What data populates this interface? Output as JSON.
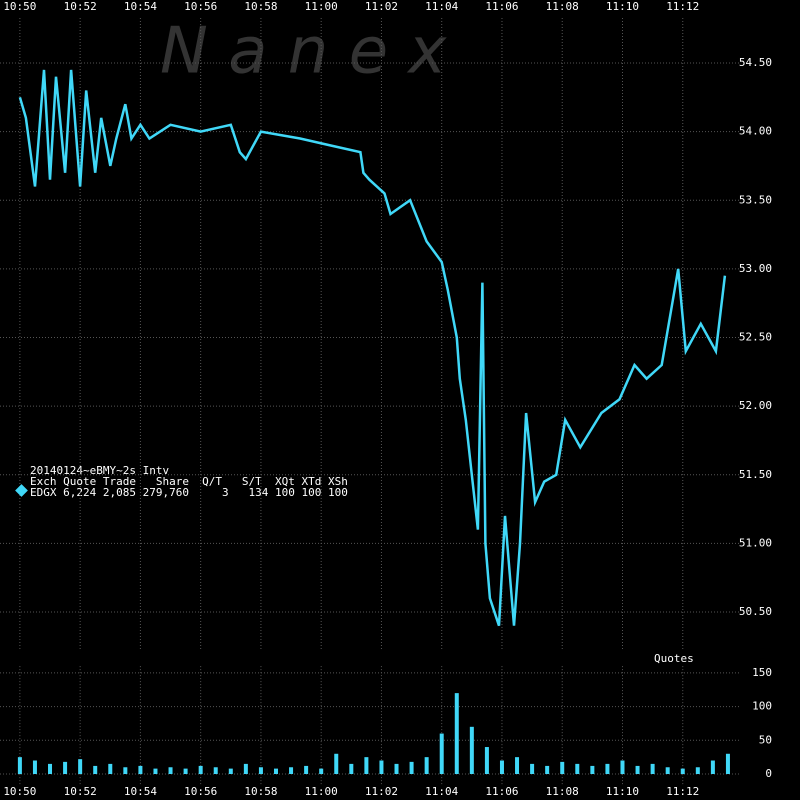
{
  "chart_data": [
    {
      "type": "line",
      "watermark": "N a n e x",
      "legend": {
        "title": "20140124~eBMY~2s Intv",
        "header": "Exch Quote Trade   Share  Q/T   S/T  XQt XTd XSh",
        "row": "EDGX 6,224 2,085 279,760     3   134 100 100 100"
      },
      "x": [
        0,
        0.2,
        0.5,
        0.8,
        1.0,
        1.2,
        1.5,
        1.7,
        2.0,
        2.2,
        2.5,
        2.7,
        3.0,
        3.2,
        3.5,
        3.7,
        4.0,
        4.3,
        5.0,
        6.0,
        7.0,
        7.3,
        7.5,
        8.0,
        9.3,
        10.3,
        11.3,
        11.4,
        11.6,
        12.1,
        12.3,
        12.95,
        13.5,
        14.0,
        14.2,
        14.5,
        14.6,
        14.8,
        15.0,
        15.2,
        15.35,
        15.45,
        15.6,
        15.9,
        16.1,
        16.4,
        16.6,
        16.8,
        17.1,
        17.4,
        17.8,
        18.1,
        18.6,
        19.3,
        19.9,
        20.4,
        20.8,
        21.3,
        21.85,
        22.1,
        22.6,
        23.1,
        23.4
      ],
      "series": [
        {
          "name": "EDGX",
          "color": "#40d8f8",
          "values": [
            54.25,
            54.1,
            53.6,
            54.45,
            53.65,
            54.4,
            53.7,
            54.45,
            53.6,
            54.3,
            53.7,
            54.1,
            53.75,
            53.95,
            54.2,
            53.95,
            54.05,
            53.95,
            54.05,
            54.0,
            54.05,
            53.85,
            53.8,
            54.0,
            53.95,
            53.9,
            53.85,
            53.7,
            53.65,
            53.55,
            53.4,
            53.5,
            53.2,
            53.05,
            52.85,
            52.5,
            52.2,
            51.9,
            51.5,
            51.1,
            52.9,
            51.0,
            50.6,
            50.4,
            51.2,
            50.4,
            51.0,
            51.95,
            51.3,
            51.45,
            51.5,
            51.9,
            51.7,
            51.95,
            52.05,
            52.3,
            52.2,
            52.3,
            53.0,
            52.4,
            52.6,
            52.4,
            52.95
          ]
        }
      ],
      "xlim": [
        -0.66,
        23.9
      ],
      "ylim": [
        50.1,
        54.9
      ],
      "xticks": [
        {
          "value": 0,
          "label": "10:50"
        },
        {
          "value": 2,
          "label": "10:52"
        },
        {
          "value": 4,
          "label": "10:54"
        },
        {
          "value": 6,
          "label": "10:56"
        },
        {
          "value": 8,
          "label": "10:58"
        },
        {
          "value": 10,
          "label": "11:00"
        },
        {
          "value": 12,
          "label": "11:02"
        },
        {
          "value": 14,
          "label": "11:04"
        },
        {
          "value": 16,
          "label": "11:06"
        },
        {
          "value": 18,
          "label": "11:08"
        },
        {
          "value": 20,
          "label": "11:10"
        },
        {
          "value": 22,
          "label": "11:12"
        }
      ],
      "yticks": [
        {
          "value": 50.5,
          "label": "50.50"
        },
        {
          "value": 51,
          "label": "51.00"
        },
        {
          "value": 51.5,
          "label": "51.50"
        },
        {
          "value": 52,
          "label": "52.00"
        },
        {
          "value": 52.5,
          "label": "52.50"
        },
        {
          "value": 53,
          "label": "53.00"
        },
        {
          "value": 53.5,
          "label": "53.50"
        },
        {
          "value": 54,
          "label": "54.00"
        },
        {
          "value": 54.5,
          "label": "54.50"
        }
      ],
      "grid": true
    },
    {
      "type": "bar",
      "title": "Quotes",
      "x": [
        0,
        0.5,
        1,
        1.5,
        2,
        2.5,
        3,
        3.5,
        4,
        4.5,
        5,
        5.5,
        6,
        6.5,
        7,
        7.5,
        8,
        8.5,
        9,
        9.5,
        10,
        10.5,
        11,
        11.5,
        12,
        12.5,
        13,
        13.5,
        14,
        14.5,
        15,
        15.5,
        16,
        16.5,
        17,
        17.5,
        18,
        18.5,
        19,
        19.5,
        20,
        20.5,
        21,
        21.5,
        22,
        22.5,
        23,
        23.5
      ],
      "values": [
        25,
        20,
        15,
        18,
        22,
        12,
        15,
        10,
        12,
        8,
        10,
        8,
        12,
        10,
        8,
        15,
        10,
        8,
        10,
        12,
        8,
        30,
        15,
        25,
        20,
        15,
        18,
        25,
        60,
        120,
        70,
        40,
        20,
        25,
        15,
        12,
        18,
        15,
        12,
        15,
        20,
        12,
        15,
        10,
        8,
        10,
        20,
        30
      ],
      "color": "#40d8f8",
      "xlim": [
        -0.66,
        23.9
      ],
      "ylim": [
        0,
        160
      ],
      "xticks": [
        {
          "value": 0,
          "label": "10:50"
        },
        {
          "value": 2,
          "label": "10:52"
        },
        {
          "value": 4,
          "label": "10:54"
        },
        {
          "value": 6,
          "label": "10:56"
        },
        {
          "value": 8,
          "label": "10:58"
        },
        {
          "value": 10,
          "label": "11:00"
        },
        {
          "value": 12,
          "label": "11:02"
        },
        {
          "value": 14,
          "label": "11:04"
        },
        {
          "value": 16,
          "label": "11:06"
        },
        {
          "value": 18,
          "label": "11:08"
        },
        {
          "value": 20,
          "label": "11:10"
        },
        {
          "value": 22,
          "label": "11:12"
        }
      ],
      "yticks": [
        0,
        50,
        100,
        150
      ],
      "grid": true
    }
  ]
}
